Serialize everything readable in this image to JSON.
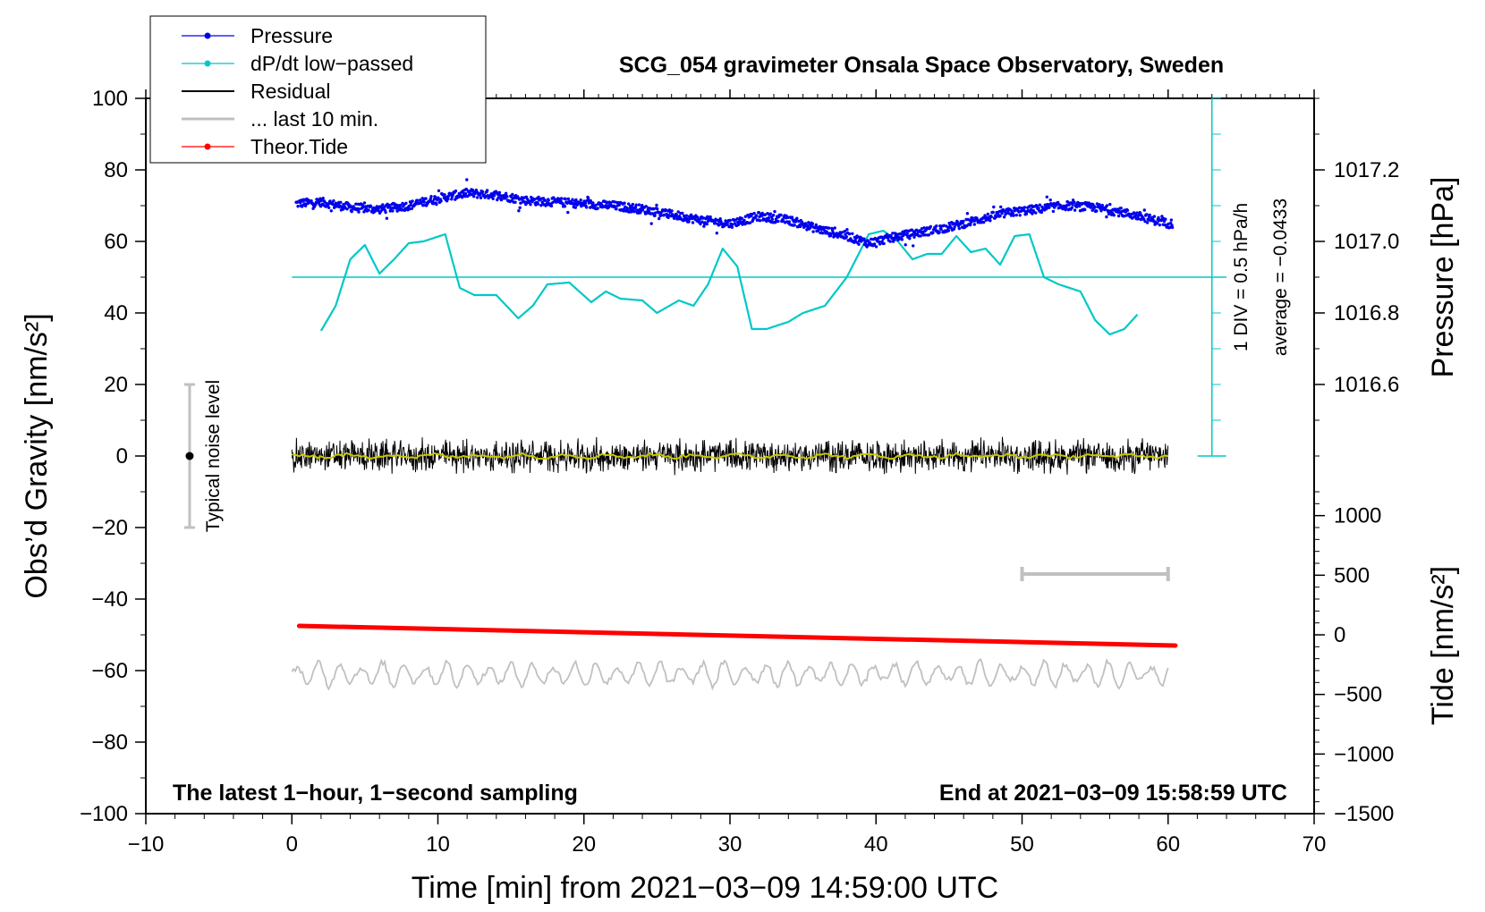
{
  "chart_data": {
    "type": "line",
    "title": "SCG_054 gravimeter Onsala Space Observatory, Sweden",
    "xlabel": "Time [min] from 2021−03−09 14:59:00 UTC",
    "ylabel_left": "Obs’d Gravity [nm/s²]",
    "ylabel_right_top": "Pressure [hPa]",
    "ylabel_right_bottom": "Tide [nm/s²]",
    "xlim": [
      -10,
      70
    ],
    "ylim": [
      -100,
      100
    ],
    "pressure_ylim": [
      1016.4,
      1017.4
    ],
    "tide_ylim": [
      -1500,
      1500
    ],
    "x_ticks": [
      "−10",
      "0",
      "10",
      "20",
      "30",
      "40",
      "50",
      "60",
      "70"
    ],
    "x_tick_values": [
      -10,
      0,
      10,
      20,
      30,
      40,
      50,
      60,
      70
    ],
    "y_ticks": [
      "100",
      "80",
      "60",
      "40",
      "20",
      "0",
      "−20",
      "−40",
      "−60",
      "−80",
      "−100"
    ],
    "y_tick_values": [
      100,
      80,
      60,
      40,
      20,
      0,
      -20,
      -40,
      -60,
      -80,
      -100
    ],
    "pressure_ticks": [
      "1017.2",
      "1017.0",
      "1016.8",
      "1016.6"
    ],
    "pressure_tick_values": [
      1017.2,
      1017.0,
      1016.8,
      1016.6
    ],
    "tide_ticks": [
      "1000",
      "500",
      "0",
      "−500",
      "−1000",
      "−1500"
    ],
    "tide_tick_values": [
      1000,
      500,
      0,
      -500,
      -1000,
      -1500
    ],
    "legend": [
      {
        "name": "Pressure",
        "color": "#0000ee",
        "marker": true
      },
      {
        "name": "dP/dt low−passed",
        "color": "#00c8c8",
        "marker": true
      },
      {
        "name": "Residual",
        "color": "#000000",
        "marker": false
      },
      {
        "name": "... last 10 min.",
        "color": "#c0c0c0",
        "marker": false
      },
      {
        "name": "Theor.Tide",
        "color": "#ff0000",
        "marker": true
      }
    ],
    "series": [
      {
        "name": "Pressure",
        "color": "#0000ee",
        "x": [
          0,
          2,
          4,
          6,
          8,
          10,
          12,
          14,
          16,
          18,
          20,
          22,
          24,
          26,
          28,
          30,
          32,
          34,
          36,
          38,
          39.5,
          41,
          43,
          45,
          47,
          49,
          51,
          53,
          55,
          57,
          60
        ],
        "values": [
          70.5,
          71,
          69.5,
          69,
          70,
          72,
          73.5,
          73,
          71.5,
          71,
          70.5,
          70,
          69,
          67.5,
          66,
          65,
          67,
          66,
          63.5,
          61.5,
          59.5,
          61,
          62.5,
          64,
          66,
          68,
          69,
          70,
          69.5,
          68,
          65
        ]
      },
      {
        "name": "dP/dt low−passed",
        "color": "#00c8c8",
        "x": [
          2,
          3,
          4,
          5,
          6,
          7,
          8,
          9,
          10.5,
          11.5,
          12.5,
          14,
          15.5,
          16.5,
          17.5,
          19,
          20.5,
          21.5,
          22.5,
          24,
          25,
          26.5,
          27.5,
          28.5,
          29.5,
          30.5,
          31.5,
          32.5,
          34,
          35,
          36.5,
          38,
          39.5,
          40.5,
          41.5,
          42.5,
          43.5,
          44.5,
          45.5,
          46.5,
          47.5,
          48.5,
          49.5,
          50.5,
          51.5,
          52.5,
          54,
          55,
          56,
          57,
          58
        ],
        "values": [
          35,
          42,
          55,
          59,
          51,
          55,
          59.5,
          60,
          62,
          47,
          45,
          45,
          38.5,
          42,
          48,
          48.5,
          43,
          46,
          44,
          43.5,
          40,
          43.5,
          42,
          48,
          58,
          53,
          35.5,
          35.5,
          37.5,
          40,
          42,
          50,
          62,
          63,
          60,
          55,
          56.5,
          56.5,
          61.5,
          57,
          58,
          53.5,
          61.5,
          62,
          50,
          48,
          46,
          38,
          34,
          35.5,
          40
        ]
      },
      {
        "name": "dP/dt zero line",
        "color": "#00c8c8",
        "x": [
          0,
          64
        ],
        "values": [
          50,
          50
        ]
      },
      {
        "name": "Residual",
        "color": "#000000",
        "x": [
          0,
          60
        ],
        "values": [
          0,
          0
        ],
        "amplitude": 4.5
      },
      {
        "name": "Residual smoothed",
        "color": "#c8c800",
        "x": [
          0,
          60
        ],
        "values": [
          0,
          0
        ]
      },
      {
        "name": "... last 10 min.",
        "color": "#c0c0c0",
        "x": [
          0,
          60
        ],
        "values": [
          -61,
          -61
        ],
        "amplitude": 3.5
      },
      {
        "name": "Theor.Tide",
        "color": "#ff0000",
        "x": [
          0.5,
          60.5
        ],
        "values": [
          -47.5,
          -53
        ]
      }
    ],
    "annotations": {
      "noise_label": "Typical noise level",
      "noise_x": -7,
      "noise_range": [
        -20,
        20
      ],
      "div_label": "1 DIV = 0.5 hPa/h",
      "average_label": "average = −0.0433",
      "scale_bar_x": [
        50,
        60
      ],
      "scale_bar_y": -33,
      "bottom_left": "The latest 1−hour, 1−second sampling",
      "bottom_right": "End at 2021−03−09 15:58:59 UTC"
    }
  }
}
